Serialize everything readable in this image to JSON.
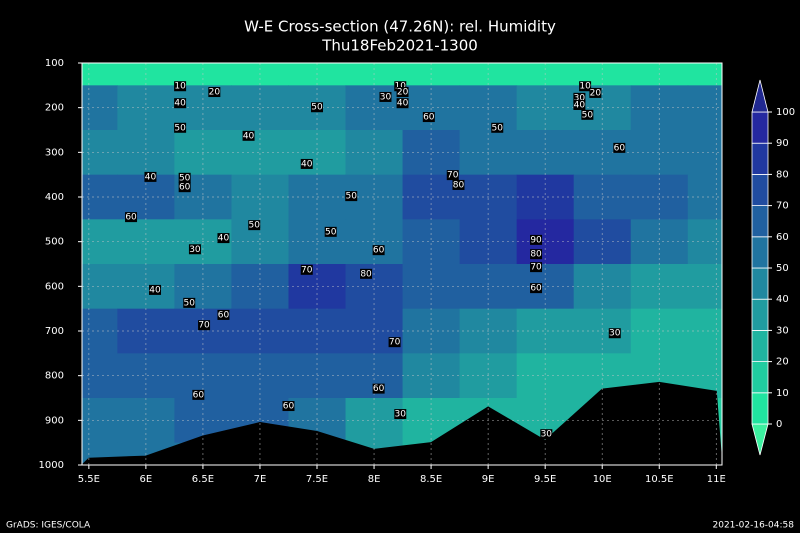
{
  "chart_data": {
    "type": "contour",
    "title": "W-E Cross-section (47.26N): rel. Humidity",
    "subtitle": "Thu18Feb2021-1300",
    "xlim": [
      5.44,
      11.05
    ],
    "ylim": [
      1000,
      100
    ],
    "xticks": [
      {
        "value": 5.5,
        "label": "5.5E"
      },
      {
        "value": 6,
        "label": "6E"
      },
      {
        "value": 6.5,
        "label": "6.5E"
      },
      {
        "value": 7,
        "label": "7E"
      },
      {
        "value": 7.5,
        "label": "7.5E"
      },
      {
        "value": 8,
        "label": "8E"
      },
      {
        "value": 8.5,
        "label": "8.5E"
      },
      {
        "value": 9,
        "label": "9E"
      },
      {
        "value": 9.5,
        "label": "9.5E"
      },
      {
        "value": 10,
        "label": "10E"
      },
      {
        "value": 10.5,
        "label": "10.5E"
      },
      {
        "value": 11,
        "label": "11E"
      }
    ],
    "yticks": [
      100,
      200,
      300,
      400,
      500,
      600,
      700,
      800,
      900,
      1000
    ],
    "grid": true,
    "x": [
      5.5,
      6,
      6.5,
      7,
      7.5,
      8,
      8.5,
      9,
      9.5,
      10,
      10.5,
      11
    ],
    "levels_p": [
      100,
      200,
      300,
      400,
      500,
      600,
      700,
      800,
      900,
      1000
    ],
    "z": [
      [
        5,
        5,
        5,
        5,
        5,
        5,
        5,
        5,
        5,
        5,
        5,
        5
      ],
      [
        50,
        48,
        48,
        48,
        48,
        50,
        52,
        50,
        45,
        45,
        50,
        50
      ],
      [
        45,
        42,
        35,
        35,
        38,
        45,
        60,
        55,
        52,
        50,
        58,
        55
      ],
      [
        62,
        60,
        55,
        48,
        50,
        55,
        70,
        78,
        85,
        65,
        62,
        58
      ],
      [
        35,
        30,
        35,
        45,
        50,
        55,
        65,
        75,
        92,
        70,
        55,
        45
      ],
      [
        40,
        45,
        55,
        65,
        82,
        75,
        65,
        60,
        62,
        45,
        35,
        30
      ],
      [
        68,
        72,
        70,
        70,
        75,
        72,
        50,
        40,
        35,
        30,
        28,
        25
      ],
      [
        60,
        62,
        65,
        62,
        62,
        60,
        45,
        30,
        25,
        25,
        22,
        20
      ],
      [
        55,
        55,
        60,
        60,
        55,
        35,
        25,
        25,
        25,
        20,
        18,
        18
      ],
      [
        50,
        50,
        55,
        55,
        50,
        30,
        25,
        25,
        30,
        20,
        18,
        18
      ]
    ],
    "terrain": [
      985,
      980,
      935,
      905,
      925,
      965,
      950,
      870,
      945,
      830,
      815,
      835
    ],
    "colorbar": {
      "levels": [
        0,
        10,
        20,
        30,
        40,
        50,
        60,
        70,
        80,
        90,
        100
      ],
      "colors": [
        "#3cf0a0",
        "#20e4a0",
        "#20ccA0",
        "#20b4a0",
        "#209ca0",
        "#2088a0",
        "#2074a0",
        "#2060a0",
        "#204ca0",
        "#2038a0",
        "#2428a0",
        "#202890"
      ]
    },
    "contour_labels": [
      {
        "value": 10,
        "x": 6.3,
        "p": 152
      },
      {
        "value": 20,
        "x": 6.6,
        "p": 165
      },
      {
        "value": 40,
        "x": 6.3,
        "p": 190
      },
      {
        "value": 10,
        "x": 8.23,
        "p": 152
      },
      {
        "value": 20,
        "x": 8.25,
        "p": 165
      },
      {
        "value": 30,
        "x": 8.1,
        "p": 176
      },
      {
        "value": 40,
        "x": 8.25,
        "p": 190
      },
      {
        "value": 10,
        "x": 9.85,
        "p": 152
      },
      {
        "value": 20,
        "x": 9.94,
        "p": 167
      },
      {
        "value": 30,
        "x": 9.8,
        "p": 178
      },
      {
        "value": 40,
        "x": 9.8,
        "p": 194
      },
      {
        "value": 50,
        "x": 9.87,
        "p": 216
      },
      {
        "value": 50,
        "x": 6.3,
        "p": 245
      },
      {
        "value": 40,
        "x": 6.9,
        "p": 263
      },
      {
        "value": 50,
        "x": 7.5,
        "p": 199
      },
      {
        "value": 60,
        "x": 8.48,
        "p": 221
      },
      {
        "value": 50,
        "x": 9.08,
        "p": 245
      },
      {
        "value": 60,
        "x": 10.15,
        "p": 290
      },
      {
        "value": 40,
        "x": 6.04,
        "p": 355
      },
      {
        "value": 50,
        "x": 6.34,
        "p": 357
      },
      {
        "value": 60,
        "x": 6.34,
        "p": 378
      },
      {
        "value": 40,
        "x": 7.41,
        "p": 326
      },
      {
        "value": 50,
        "x": 7.8,
        "p": 398
      },
      {
        "value": 60,
        "x": 5.87,
        "p": 445
      },
      {
        "value": 70,
        "x": 8.69,
        "p": 351
      },
      {
        "value": 80,
        "x": 8.74,
        "p": 373
      },
      {
        "value": 50,
        "x": 6.95,
        "p": 463
      },
      {
        "value": 40,
        "x": 6.68,
        "p": 492
      },
      {
        "value": 30,
        "x": 6.43,
        "p": 517
      },
      {
        "value": 50,
        "x": 7.62,
        "p": 478
      },
      {
        "value": 60,
        "x": 8.04,
        "p": 519
      },
      {
        "value": 70,
        "x": 7.41,
        "p": 563
      },
      {
        "value": 80,
        "x": 7.93,
        "p": 572
      },
      {
        "value": 90,
        "x": 9.42,
        "p": 496
      },
      {
        "value": 80,
        "x": 9.42,
        "p": 528
      },
      {
        "value": 70,
        "x": 9.42,
        "p": 557
      },
      {
        "value": 60,
        "x": 9.42,
        "p": 604
      },
      {
        "value": 40,
        "x": 6.08,
        "p": 608
      },
      {
        "value": 50,
        "x": 6.38,
        "p": 637
      },
      {
        "value": 60,
        "x": 6.68,
        "p": 664
      },
      {
        "value": 70,
        "x": 6.51,
        "p": 687
      },
      {
        "value": 70,
        "x": 8.18,
        "p": 725
      },
      {
        "value": 30,
        "x": 10.11,
        "p": 705
      },
      {
        "value": 60,
        "x": 6.46,
        "p": 843
      },
      {
        "value": 60,
        "x": 8.04,
        "p": 829
      },
      {
        "value": 60,
        "x": 7.25,
        "p": 868
      },
      {
        "value": 30,
        "x": 8.23,
        "p": 886
      },
      {
        "value": 30,
        "x": 9.51,
        "p": 931
      }
    ],
    "footer_left": "GrADS: IGES/COLA",
    "footer_right": "2021-02-16-04:58"
  }
}
